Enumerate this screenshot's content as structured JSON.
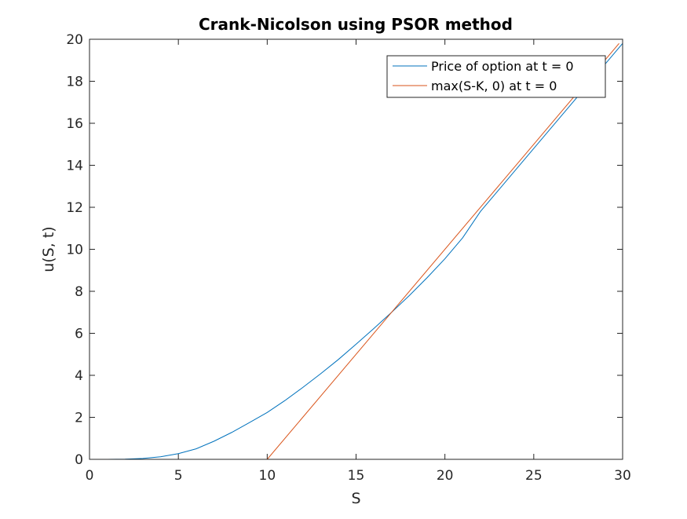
{
  "chart_data": {
    "type": "line",
    "title": "Crank-Nicolson using PSOR method",
    "xlabel": "S",
    "ylabel": "u(S, t)",
    "xlim": [
      0,
      30
    ],
    "ylim": [
      0,
      20
    ],
    "xticks": [
      0,
      5,
      10,
      15,
      20,
      25,
      30
    ],
    "yticks": [
      0,
      2,
      4,
      6,
      8,
      10,
      12,
      14,
      16,
      18,
      20
    ],
    "grid": false,
    "legend_position": "top-right",
    "series": [
      {
        "name": "Price of option at t = 0",
        "color": "#0072BD",
        "x": [
          1,
          2,
          3,
          4,
          5,
          6,
          7,
          8,
          9,
          10,
          11,
          12,
          13,
          14,
          15,
          16,
          17,
          18,
          19,
          20,
          21,
          22,
          23,
          24,
          25,
          26,
          27,
          28,
          29,
          30
        ],
        "y": [
          0.0,
          0.01,
          0.04,
          0.12,
          0.27,
          0.5,
          0.86,
          1.28,
          1.75,
          2.23,
          2.8,
          3.42,
          4.07,
          4.75,
          5.48,
          6.23,
          7.0,
          7.8,
          8.65,
          9.55,
          10.55,
          11.8,
          12.8,
          13.8,
          14.8,
          15.8,
          16.8,
          17.8,
          18.8,
          19.8
        ]
      },
      {
        "name": "max(S-K, 0) at t = 0",
        "color": "#D95319",
        "x": [
          1,
          10,
          29.8
        ],
        "y": [
          0,
          0,
          19.8
        ]
      }
    ]
  }
}
